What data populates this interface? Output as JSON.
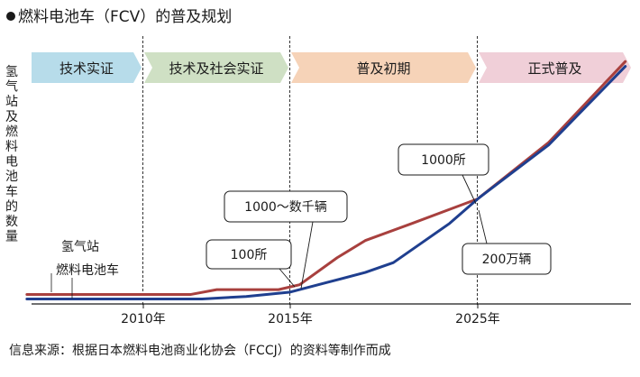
{
  "chart_data": {
    "type": "line",
    "title": "燃料电池车（FCV）的普及规划",
    "ylabel": "氢气站及燃料电池车的数量",
    "source": "信息来源：根据日本燃料电池商业化协会（FCCJ）的资料等制作而成",
    "x_ticks": [
      "2010年",
      "2015年",
      "2025年"
    ],
    "phases": [
      {
        "label": "技术实证",
        "color": "#b7dcea"
      },
      {
        "label": "技术及社会实证",
        "color": "#cfe0c4"
      },
      {
        "label": "普及初期",
        "color": "#f6d3b8"
      },
      {
        "label": "正式普及",
        "color": "#f0cfd8"
      }
    ],
    "series": [
      {
        "name": "氢气站",
        "color": "#a8403e",
        "points": [
          [
            2005,
            0.02
          ],
          [
            2008,
            0.02
          ],
          [
            2011.6,
            0.02
          ],
          [
            2012.5,
            0.04
          ],
          [
            2014.6,
            0.04
          ],
          [
            2015.5,
            0.06
          ],
          [
            2017.5,
            0.17
          ],
          [
            2019,
            0.24
          ],
          [
            2021.5,
            0.31
          ],
          [
            2025,
            0.41
          ],
          [
            2027.5,
            0.64
          ],
          [
            2030.2,
            0.97
          ]
        ],
        "label": "氢气站"
      },
      {
        "name": "燃料电池车",
        "color": "#1f3f8f",
        "points": [
          [
            2005,
            0.002
          ],
          [
            2010,
            0.002
          ],
          [
            2012,
            0.002
          ],
          [
            2013.5,
            0.012
          ],
          [
            2015,
            0.03
          ],
          [
            2017,
            0.07
          ],
          [
            2019,
            0.11
          ],
          [
            2020.5,
            0.15
          ],
          [
            2022,
            0.23
          ],
          [
            2023.5,
            0.31
          ],
          [
            2025,
            0.41
          ],
          [
            2027.5,
            0.63
          ],
          [
            2030.2,
            0.95
          ]
        ],
        "label": "燃料电池车"
      }
    ],
    "annotations": [
      {
        "id": "callout-100",
        "text": "100所",
        "year": 2015.2,
        "value": 0.04
      },
      {
        "id": "callout-1000-range",
        "text": "1000～数千辆",
        "year": 2015.3,
        "value": 0.04
      },
      {
        "id": "callout-1000",
        "text": "1000所",
        "year": 2025,
        "value": 0.41
      },
      {
        "id": "callout-200",
        "text": "200万辆",
        "year": 2025,
        "value": 0.41
      }
    ]
  }
}
